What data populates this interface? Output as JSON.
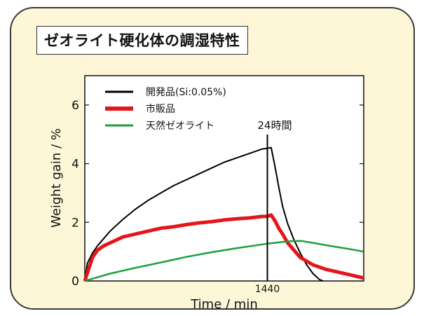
{
  "chart_data": {
    "type": "line",
    "title": "ゼオライト硬化体の調湿特性",
    "xlabel": "Time / min",
    "ylabel": "Weight gain / %",
    "xlim": [
      0,
      2200
    ],
    "ylim": [
      0,
      7
    ],
    "xticks": [
      {
        "value": 1440,
        "label": "1440"
      }
    ],
    "yticks": [
      0,
      2,
      4,
      6
    ],
    "legend_position": "top-left",
    "annotations": [
      {
        "text": "24時間",
        "x": 1440
      }
    ],
    "series": [
      {
        "name": "開発品(Si:0.05%)",
        "color": "#000000",
        "points": [
          [
            0,
            0
          ],
          [
            20,
            0.6
          ],
          [
            60,
            0.95
          ],
          [
            100,
            1.2
          ],
          [
            150,
            1.45
          ],
          [
            200,
            1.7
          ],
          [
            300,
            2.1
          ],
          [
            400,
            2.45
          ],
          [
            500,
            2.75
          ],
          [
            600,
            3.0
          ],
          [
            700,
            3.25
          ],
          [
            800,
            3.45
          ],
          [
            900,
            3.65
          ],
          [
            1000,
            3.85
          ],
          [
            1100,
            4.05
          ],
          [
            1200,
            4.2
          ],
          [
            1300,
            4.35
          ],
          [
            1400,
            4.5
          ],
          [
            1440,
            4.52
          ],
          [
            1470,
            4.55
          ],
          [
            1500,
            3.9
          ],
          [
            1530,
            3.2
          ],
          [
            1560,
            2.55
          ],
          [
            1600,
            1.95
          ],
          [
            1650,
            1.4
          ],
          [
            1700,
            0.95
          ],
          [
            1750,
            0.55
          ],
          [
            1800,
            0.25
          ],
          [
            1850,
            0.05
          ],
          [
            1880,
            0
          ]
        ]
      },
      {
        "name": "市販品",
        "color": "#e4151b",
        "points": [
          [
            0,
            0
          ],
          [
            30,
            0.4
          ],
          [
            60,
            0.8
          ],
          [
            100,
            1.05
          ],
          [
            150,
            1.2
          ],
          [
            200,
            1.3
          ],
          [
            300,
            1.5
          ],
          [
            400,
            1.6
          ],
          [
            500,
            1.7
          ],
          [
            600,
            1.8
          ],
          [
            700,
            1.85
          ],
          [
            800,
            1.92
          ],
          [
            900,
            1.98
          ],
          [
            1000,
            2.02
          ],
          [
            1100,
            2.08
          ],
          [
            1200,
            2.12
          ],
          [
            1300,
            2.15
          ],
          [
            1400,
            2.2
          ],
          [
            1440,
            2.2
          ],
          [
            1470,
            2.25
          ],
          [
            1500,
            2.05
          ],
          [
            1530,
            1.8
          ],
          [
            1560,
            1.6
          ],
          [
            1600,
            1.3
          ],
          [
            1650,
            1.05
          ],
          [
            1700,
            0.8
          ],
          [
            1800,
            0.55
          ],
          [
            1900,
            0.4
          ],
          [
            2000,
            0.3
          ],
          [
            2100,
            0.2
          ],
          [
            2200,
            0.1
          ]
        ]
      },
      {
        "name": "天然ゼオライト",
        "color": "#1e9e3e",
        "points": [
          [
            0,
            0
          ],
          [
            200,
            0.25
          ],
          [
            400,
            0.45
          ],
          [
            600,
            0.63
          ],
          [
            800,
            0.82
          ],
          [
            1000,
            0.98
          ],
          [
            1200,
            1.12
          ],
          [
            1440,
            1.27
          ],
          [
            1600,
            1.35
          ],
          [
            1700,
            1.37
          ],
          [
            1800,
            1.3
          ],
          [
            1900,
            1.22
          ],
          [
            2000,
            1.15
          ],
          [
            2100,
            1.08
          ],
          [
            2200,
            1.0
          ]
        ]
      }
    ]
  }
}
